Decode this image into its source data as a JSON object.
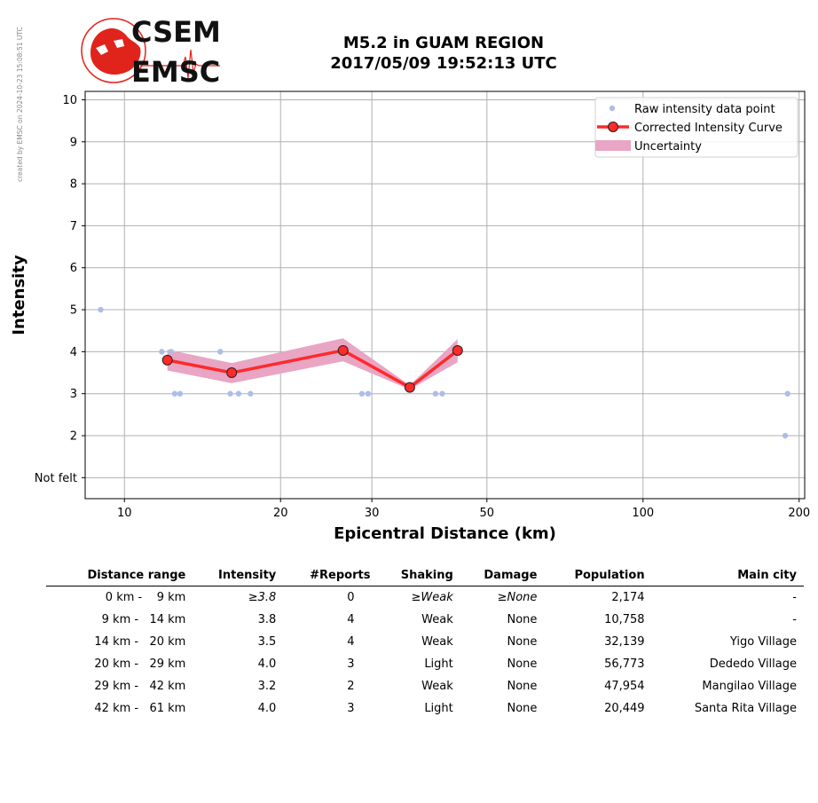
{
  "side_note": "created by EMSC on 2024-10-23 15:08:51 UTC",
  "logo": {
    "line1": "CSEM",
    "line2": "EMSC"
  },
  "title": {
    "line1": "M5.2 in GUAM REGION",
    "line2": "2017/05/09 19:52:13 UTC"
  },
  "colors": {
    "raw": "#aebde8",
    "curve": "#ff2a2a",
    "marker": "#ff2a2a",
    "uncertainty": "#e8a6c4",
    "grid": "#b0b0b0",
    "logo_red": "#e0241b"
  },
  "chart_data": {
    "type": "line",
    "xlabel": "Epicentral Distance (km)",
    "ylabel": "Intensity",
    "x_scale": "log",
    "xlim": [
      8.4,
      205
    ],
    "ylim": [
      0.5,
      10.2
    ],
    "x_ticks": [
      10,
      20,
      30,
      50,
      100,
      200
    ],
    "x_tick_labels": [
      "10",
      "20",
      "30",
      "50",
      "100",
      "200"
    ],
    "y_ticks": [
      1,
      2,
      3,
      4,
      5,
      6,
      7,
      8,
      9,
      10
    ],
    "y_tick_labels": [
      "Not felt",
      "2",
      "3",
      "4",
      "5",
      "6",
      "7",
      "8",
      "9",
      "10"
    ],
    "grid": true,
    "legend_position": "top-right",
    "series": [
      {
        "name": "Raw intensity data point",
        "kind": "scatter",
        "x": [
          9.0,
          11.8,
          12.3,
          12.5,
          12.8,
          15.3,
          16.0,
          16.6,
          17.5,
          28.7,
          29.5,
          39.8,
          41.0,
          188,
          190
        ],
        "y": [
          5,
          4,
          4,
          3,
          3,
          4,
          3,
          3,
          3,
          3,
          3,
          3,
          3,
          2,
          3
        ]
      },
      {
        "name": "Corrected Intensity Curve",
        "kind": "line",
        "x": [
          12.1,
          16.1,
          26.4,
          35.5,
          43.9
        ],
        "y": [
          3.8,
          3.5,
          4.03,
          3.15,
          4.03
        ]
      },
      {
        "name": "Uncertainty",
        "kind": "band",
        "x": [
          12.1,
          16.1,
          26.4,
          35.5,
          43.9
        ],
        "upper": [
          4.05,
          3.73,
          4.32,
          3.2,
          4.3
        ],
        "lower": [
          3.55,
          3.25,
          3.77,
          3.1,
          3.75
        ]
      }
    ]
  },
  "table": {
    "headers": [
      "Distance range",
      "Intensity",
      "#Reports",
      "Shaking",
      "Damage",
      "Population",
      "Main city"
    ],
    "rows": [
      {
        "distance": "0 km -    9 km",
        "intensity": "≥3.8",
        "reports": "0",
        "shaking": "≥Weak",
        "damage": "≥None",
        "population": "2,174",
        "city": "-"
      },
      {
        "distance": "9 km -   14 km",
        "intensity": "3.8",
        "reports": "4",
        "shaking": "Weak",
        "damage": "None",
        "population": "10,758",
        "city": "-"
      },
      {
        "distance": "14 km -   20 km",
        "intensity": "3.5",
        "reports": "4",
        "shaking": "Weak",
        "damage": "None",
        "population": "32,139",
        "city": "Yigo Village"
      },
      {
        "distance": "20 km -   29 km",
        "intensity": "4.0",
        "reports": "3",
        "shaking": "Light",
        "damage": "None",
        "population": "56,773",
        "city": "Dededo Village"
      },
      {
        "distance": "29 km -   42 km",
        "intensity": "3.2",
        "reports": "2",
        "shaking": "Weak",
        "damage": "None",
        "population": "47,954",
        "city": "Mangilao Village"
      },
      {
        "distance": "42 km -   61 km",
        "intensity": "4.0",
        "reports": "3",
        "shaking": "Light",
        "damage": "None",
        "population": "20,449",
        "city": "Santa Rita Village"
      }
    ]
  }
}
